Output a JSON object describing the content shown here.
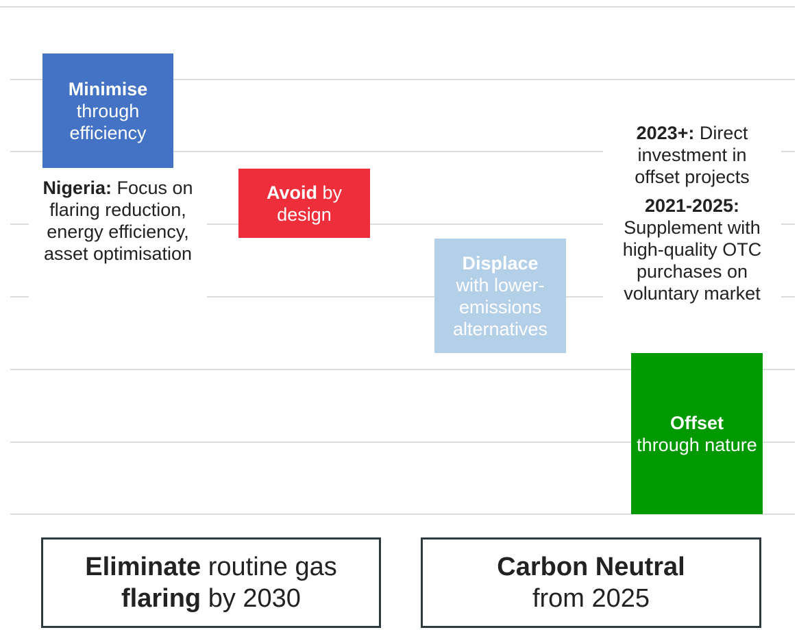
{
  "steps": [
    {
      "bold": "Minimise",
      "text": "through efficiency"
    },
    {
      "bold": "Avoid",
      "text": "by design"
    },
    {
      "bold": "Displace",
      "text": "with lower-emissions alternatives"
    },
    {
      "bold": "Offset",
      "text": "through nature"
    }
  ],
  "notes": [
    {
      "bold": "Nigeria:",
      "text": "Focus on flaring reduction, energy efficiency, asset optimisation"
    },
    {
      "bold": "2023+:",
      "text": "Direct investment in offset projects"
    },
    {
      "bold": "2021-2025:",
      "text": "Supplement with high-quality OTC purchases on voluntary market"
    }
  ],
  "targets": [
    {
      "bold": "Eliminate",
      "text": "routine gas",
      "bold2": "flaring",
      "text2": "by 2030"
    },
    {
      "bold": "Carbon Neutral",
      "text": "from 2025"
    }
  ]
}
